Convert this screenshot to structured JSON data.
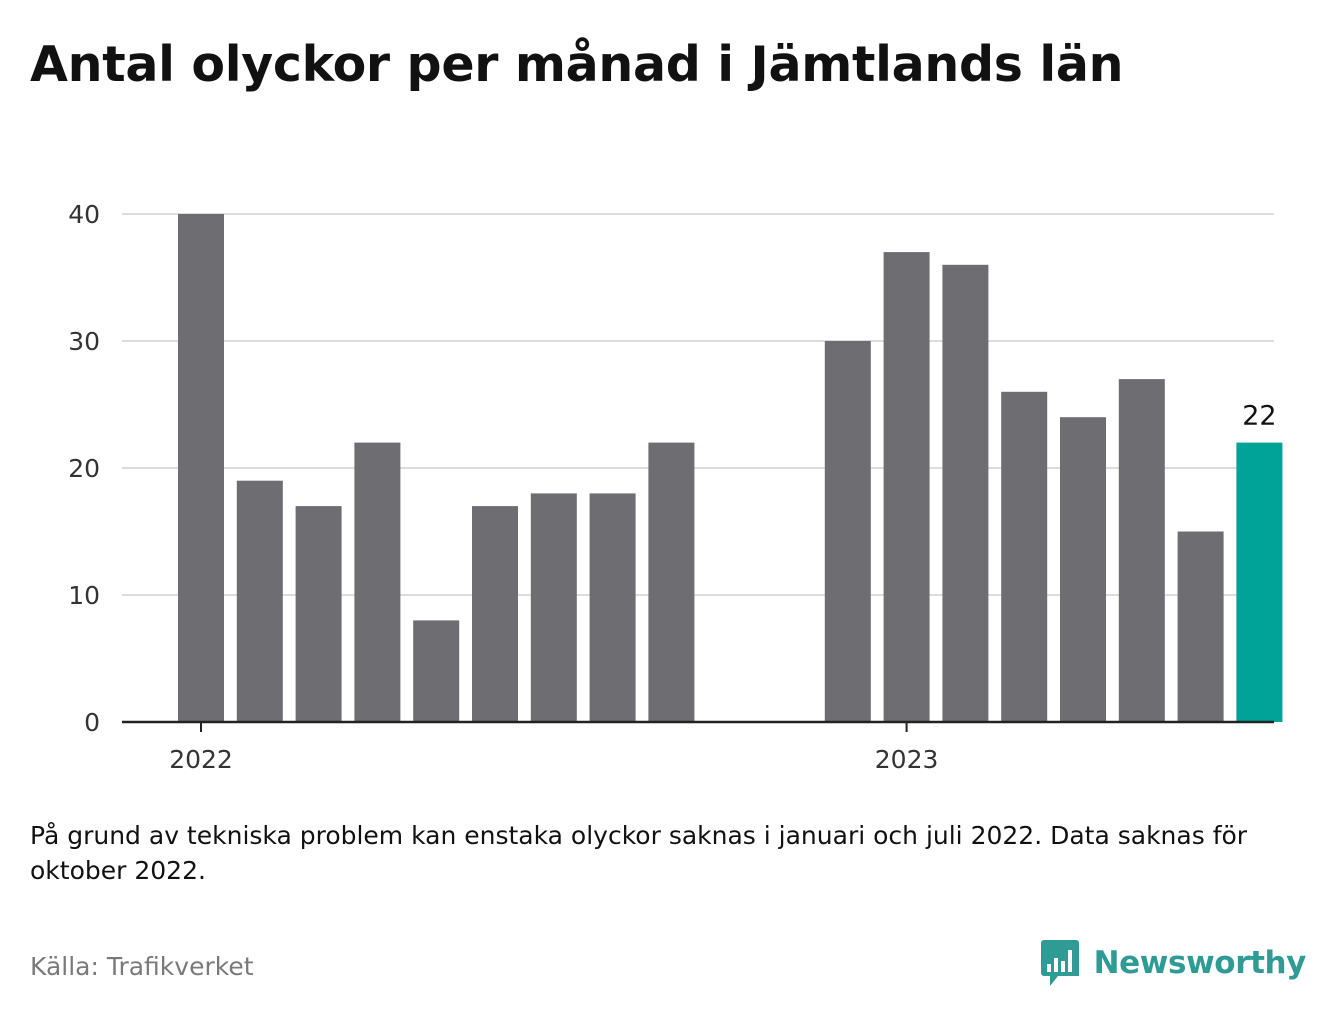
{
  "title": "Antal olyckor per månad i Jämtlands län",
  "footnote": "På grund av tekniska problem kan enstaka olyckor saknas i januari och juli 2022. Data saknas för oktober 2022.",
  "source": "Källa: Trafikverket",
  "brand": {
    "name": "Newsworthy",
    "color": "#2e9c94",
    "icon": "newsworthy-logo-icon"
  },
  "colors": {
    "bar": "#6e6d72",
    "highlight": "#00a398",
    "grid": "#dcdcdc",
    "axis": "#222222"
  },
  "chart_data": {
    "type": "bar",
    "title": "Antal olyckor per månad i Jämtlands län",
    "xlabel": "",
    "ylabel": "",
    "ylim": [
      0,
      40
    ],
    "yticks": [
      0,
      10,
      20,
      30,
      40
    ],
    "grid": true,
    "x_tick_labels": [
      "2022",
      "2023"
    ],
    "categories": [
      "2022-01",
      "2022-02",
      "2022-03",
      "2022-04",
      "2022-05",
      "2022-06",
      "2022-07",
      "2022-08",
      "2022-09",
      "2022-10",
      "2022-11",
      "2022-12",
      "2023-01",
      "2023-02",
      "2023-03",
      "2023-04",
      "2023-05",
      "2023-06",
      "2023-07",
      "2023-08"
    ],
    "values": [
      40,
      19,
      17,
      22,
      8,
      17,
      18,
      18,
      22,
      null,
      null,
      30,
      37,
      36,
      26,
      24,
      27,
      15,
      22,
      null
    ],
    "highlight": {
      "category": "2023-07",
      "value": 22,
      "label": "22"
    }
  }
}
